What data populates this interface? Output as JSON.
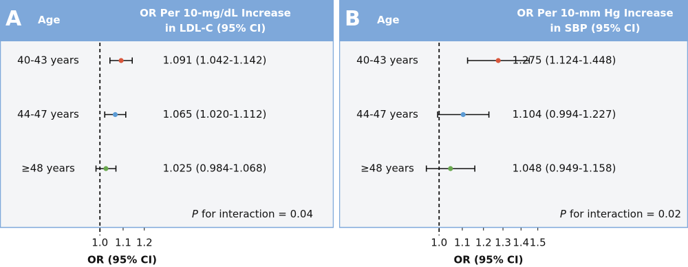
{
  "chart_data": [
    {
      "type": "forest",
      "panel": "A",
      "row_header": "Age",
      "title": "OR Per 10-mg/dL Increase in LDL-C (95% CI)",
      "categories": [
        "40-43 years",
        "44-47 years",
        "≥48 years"
      ],
      "values": [
        1.091,
        1.065,
        1.025
      ],
      "lower": [
        1.042,
        1.02,
        0.984
      ],
      "upper": [
        1.142,
        1.112,
        1.068
      ],
      "value_labels": [
        "1.091 (1.042-1.142)",
        "1.065 (1.020-1.112)",
        "1.025 (0.984-1.068)"
      ],
      "colors": [
        "#d9563b",
        "#5b9bd5",
        "#6aa84f"
      ],
      "annotation_italic": "P",
      "annotation": "for interaction = 0.04",
      "xlabel": "OR (95% CI)",
      "xscale": "log",
      "xlim": [
        0.88,
        2.4
      ],
      "reference": 1,
      "xticks": [
        {
          "value": 1,
          "label": "1.0"
        },
        1.1,
        1.2
      ]
    },
    {
      "type": "forest",
      "panel": "B",
      "row_header": "Age",
      "title": "OR Per 10-mm Hg Increase in SBP (95% CI)",
      "categories": [
        "40-43 years",
        "44-47 years",
        "≥48 years"
      ],
      "values": [
        1.275,
        1.104,
        1.048
      ],
      "lower": [
        1.124,
        0.994,
        0.949
      ],
      "upper": [
        1.448,
        1.227,
        1.158
      ],
      "value_labels": [
        "1.275 (1.124-1.448)",
        "1.104 (0.994-1.227)",
        "1.048 (0.949-1.158)"
      ],
      "colors": [
        "#d9563b",
        "#5b9bd5",
        "#6aa84f"
      ],
      "annotation_italic": "P",
      "annotation": "for interaction = 0.02",
      "xlabel": "OR (95% CI)",
      "xscale": "log",
      "xlim": [
        0.88,
        2.4
      ],
      "reference": 1,
      "xticks": [
        {
          "value": 1,
          "label": "1.0"
        },
        1.1,
        1.2,
        1.3,
        1.4,
        1.5
      ]
    }
  ]
}
